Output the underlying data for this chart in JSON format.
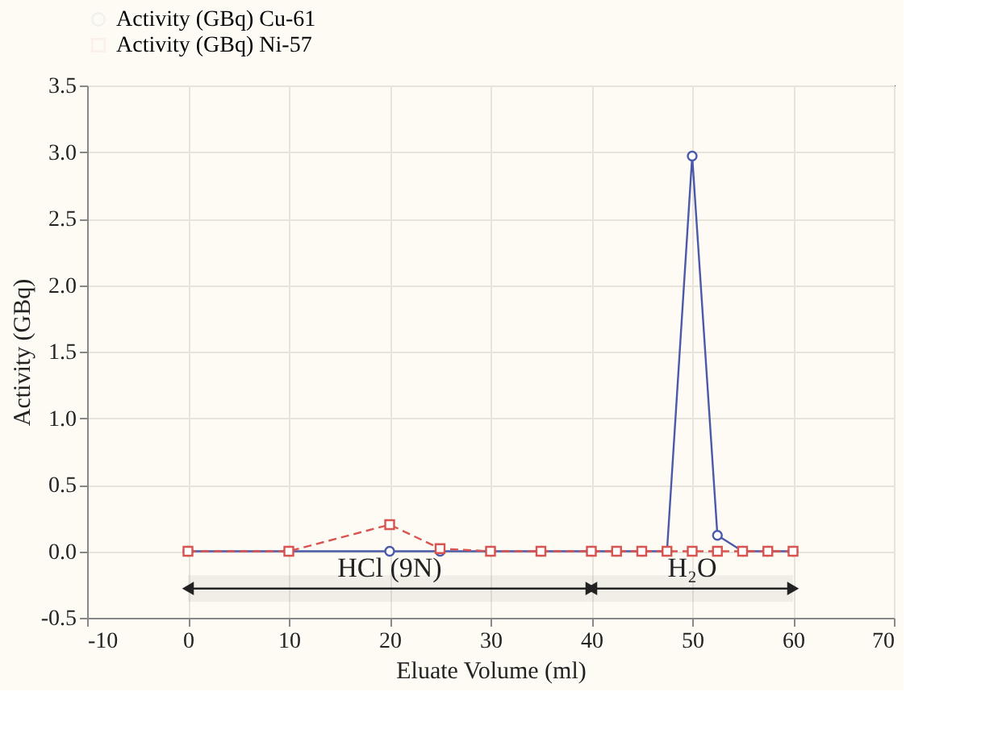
{
  "chart_data": {
    "type": "line",
    "xlabel": "Eluate Volume (ml)",
    "ylabel": "Activity (GBq)",
    "x": [
      0,
      10,
      20,
      25,
      30,
      35,
      40,
      42.5,
      45,
      47.5,
      50,
      52.5,
      55,
      57.5,
      60
    ],
    "series": [
      {
        "name": "Activity (GBq) Cu-61",
        "color": "#4b5aa8",
        "marker": "circle",
        "line_style": "solid",
        "values": [
          0,
          0,
          0,
          0,
          0,
          0,
          0,
          0,
          0,
          0,
          2.97,
          0.12,
          0,
          0,
          0
        ]
      },
      {
        "name": "Activity (GBq) Ni-57",
        "color": "#d9534f",
        "marker": "square",
        "line_style": "dashed",
        "values": [
          0,
          0,
          0.2,
          0.02,
          0,
          0,
          0,
          0,
          0,
          0,
          0,
          0,
          0,
          0,
          0
        ]
      }
    ],
    "xlim": [
      -10,
      70
    ],
    "xticks": [
      -10,
      0,
      10,
      20,
      30,
      40,
      50,
      60,
      70
    ],
    "ylim": [
      -0.5,
      3.5
    ],
    "yticks": [
      {
        "value": -0.5,
        "label": "-0.5"
      },
      {
        "value": 0,
        "label": "0.0"
      },
      {
        "value": 0.5,
        "label": "0.5"
      },
      {
        "value": 1,
        "label": "1.0"
      },
      {
        "value": 1.5,
        "label": "1.5"
      },
      {
        "value": 2,
        "label": "2.0"
      },
      {
        "value": 2.5,
        "label": "2.5"
      },
      {
        "value": 3,
        "label": "3.0"
      },
      {
        "value": 3.5,
        "label": "3.5"
      }
    ],
    "bands": [
      {
        "axis": "x",
        "from": 0,
        "to": 40,
        "label": "HCl (9N)",
        "color": "#222222"
      },
      {
        "axis": "x",
        "from": 40,
        "to": 60,
        "label": "H₂O",
        "color": "#222222"
      }
    ],
    "grid": true,
    "legend": "top"
  }
}
